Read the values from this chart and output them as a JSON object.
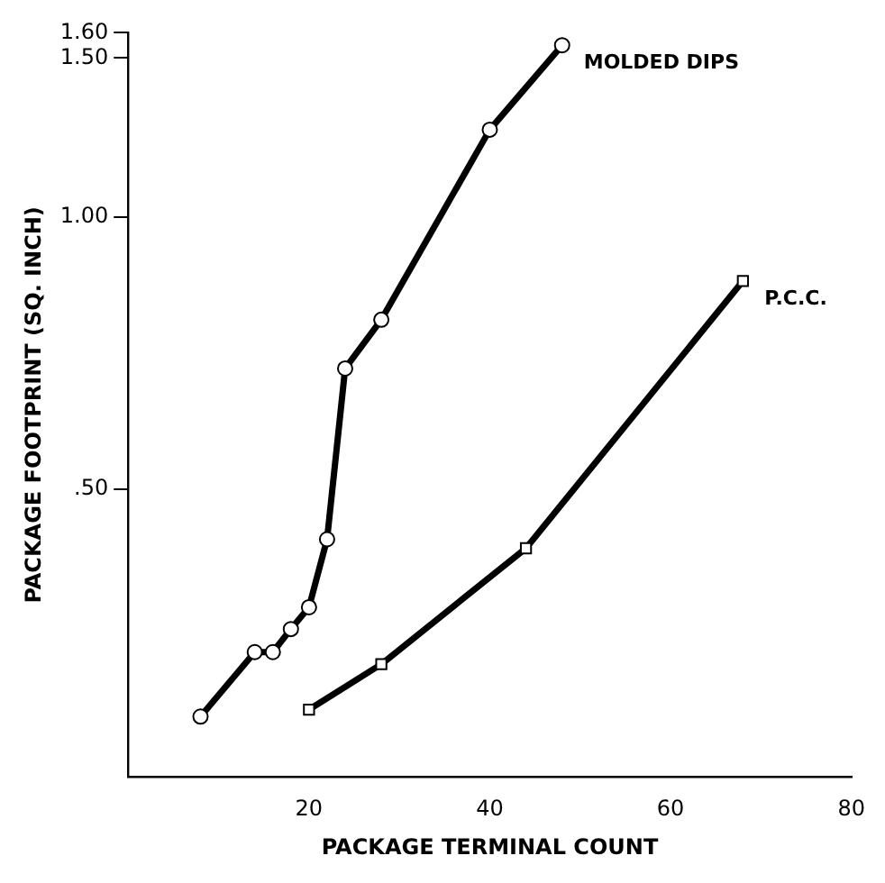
{
  "chart_data": {
    "type": "line",
    "xlabel": "PACKAGE TERMINAL COUNT",
    "ylabel": "PACKAGE FOOTPRINT (SQ. INCH)",
    "log": "y",
    "grid": false,
    "legend": false,
    "line_style": "solid",
    "xlim": [
      0,
      80
    ],
    "xticks": [
      20,
      40,
      60,
      80
    ],
    "ylim": [
      0.24,
      1.6
    ],
    "yticks": [
      {
        "value": 0.5,
        "label": ".50"
      },
      {
        "value": 1,
        "label": "1.00"
      },
      {
        "value": 1.5,
        "label": "1.50"
      },
      {
        "value": 1.6,
        "label": "1.60"
      }
    ],
    "series": [
      {
        "name": "MOLDED DIPS",
        "color": "#000000",
        "marker": "circle",
        "x": [
          8,
          14,
          16,
          18,
          20,
          22,
          24,
          28,
          40,
          48
        ],
        "values": [
          0.28,
          0.33,
          0.33,
          0.35,
          0.37,
          0.44,
          0.68,
          0.77,
          1.25,
          1.55
        ]
      },
      {
        "name": "P.C.C.",
        "color": "#000000",
        "marker": "square",
        "x": [
          20,
          28,
          44,
          68
        ],
        "values": [
          0.285,
          0.32,
          0.43,
          0.85
        ]
      }
    ]
  }
}
